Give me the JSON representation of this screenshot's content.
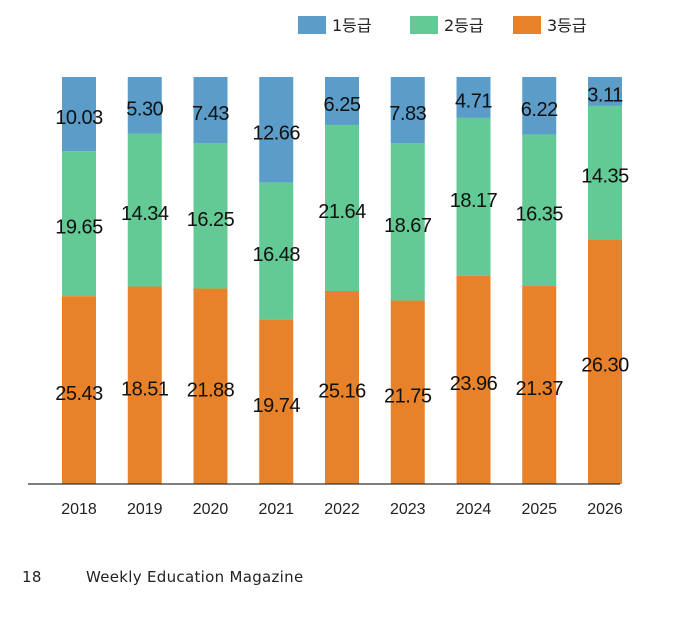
{
  "chart_data": {
    "type": "bar",
    "stacked": true,
    "categories": [
      "2018",
      "2019",
      "2020",
      "2021",
      "2022",
      "2023",
      "2024",
      "2025",
      "2026"
    ],
    "series": [
      {
        "name": "1등급",
        "color": "#5b9cc9",
        "values": [
          10.03,
          5.3,
          7.43,
          12.66,
          6.25,
          7.83,
          4.71,
          6.22,
          3.11
        ],
        "labels": [
          "10.03",
          "5.30",
          "7.43",
          "12.66",
          "6.25",
          "7.83",
          "4.71",
          "6.22",
          "3.11"
        ]
      },
      {
        "name": "2등급",
        "color": "#63c995",
        "values": [
          19.65,
          14.34,
          16.25,
          16.48,
          21.64,
          18.67,
          18.17,
          16.35,
          14.35
        ],
        "labels": [
          "19.65",
          "14.34",
          "16.25",
          "16.48",
          "21.64",
          "18.67",
          "18.17",
          "16.35",
          "14.35"
        ]
      },
      {
        "name": "3등급",
        "color": "#e8822a",
        "values": [
          25.43,
          18.51,
          21.88,
          19.74,
          25.16,
          21.75,
          23.96,
          21.37,
          26.3
        ],
        "labels": [
          "25.43",
          "18.51",
          "21.88",
          "19.74",
          "25.16",
          "21.75",
          "23.96",
          "21.37",
          "26.30"
        ]
      }
    ],
    "normalized": true,
    "title": "",
    "xlabel": "",
    "ylabel": "",
    "legend_position": "top-right"
  },
  "footer": {
    "page_number": "18",
    "magazine": "Weekly Education Magazine"
  }
}
